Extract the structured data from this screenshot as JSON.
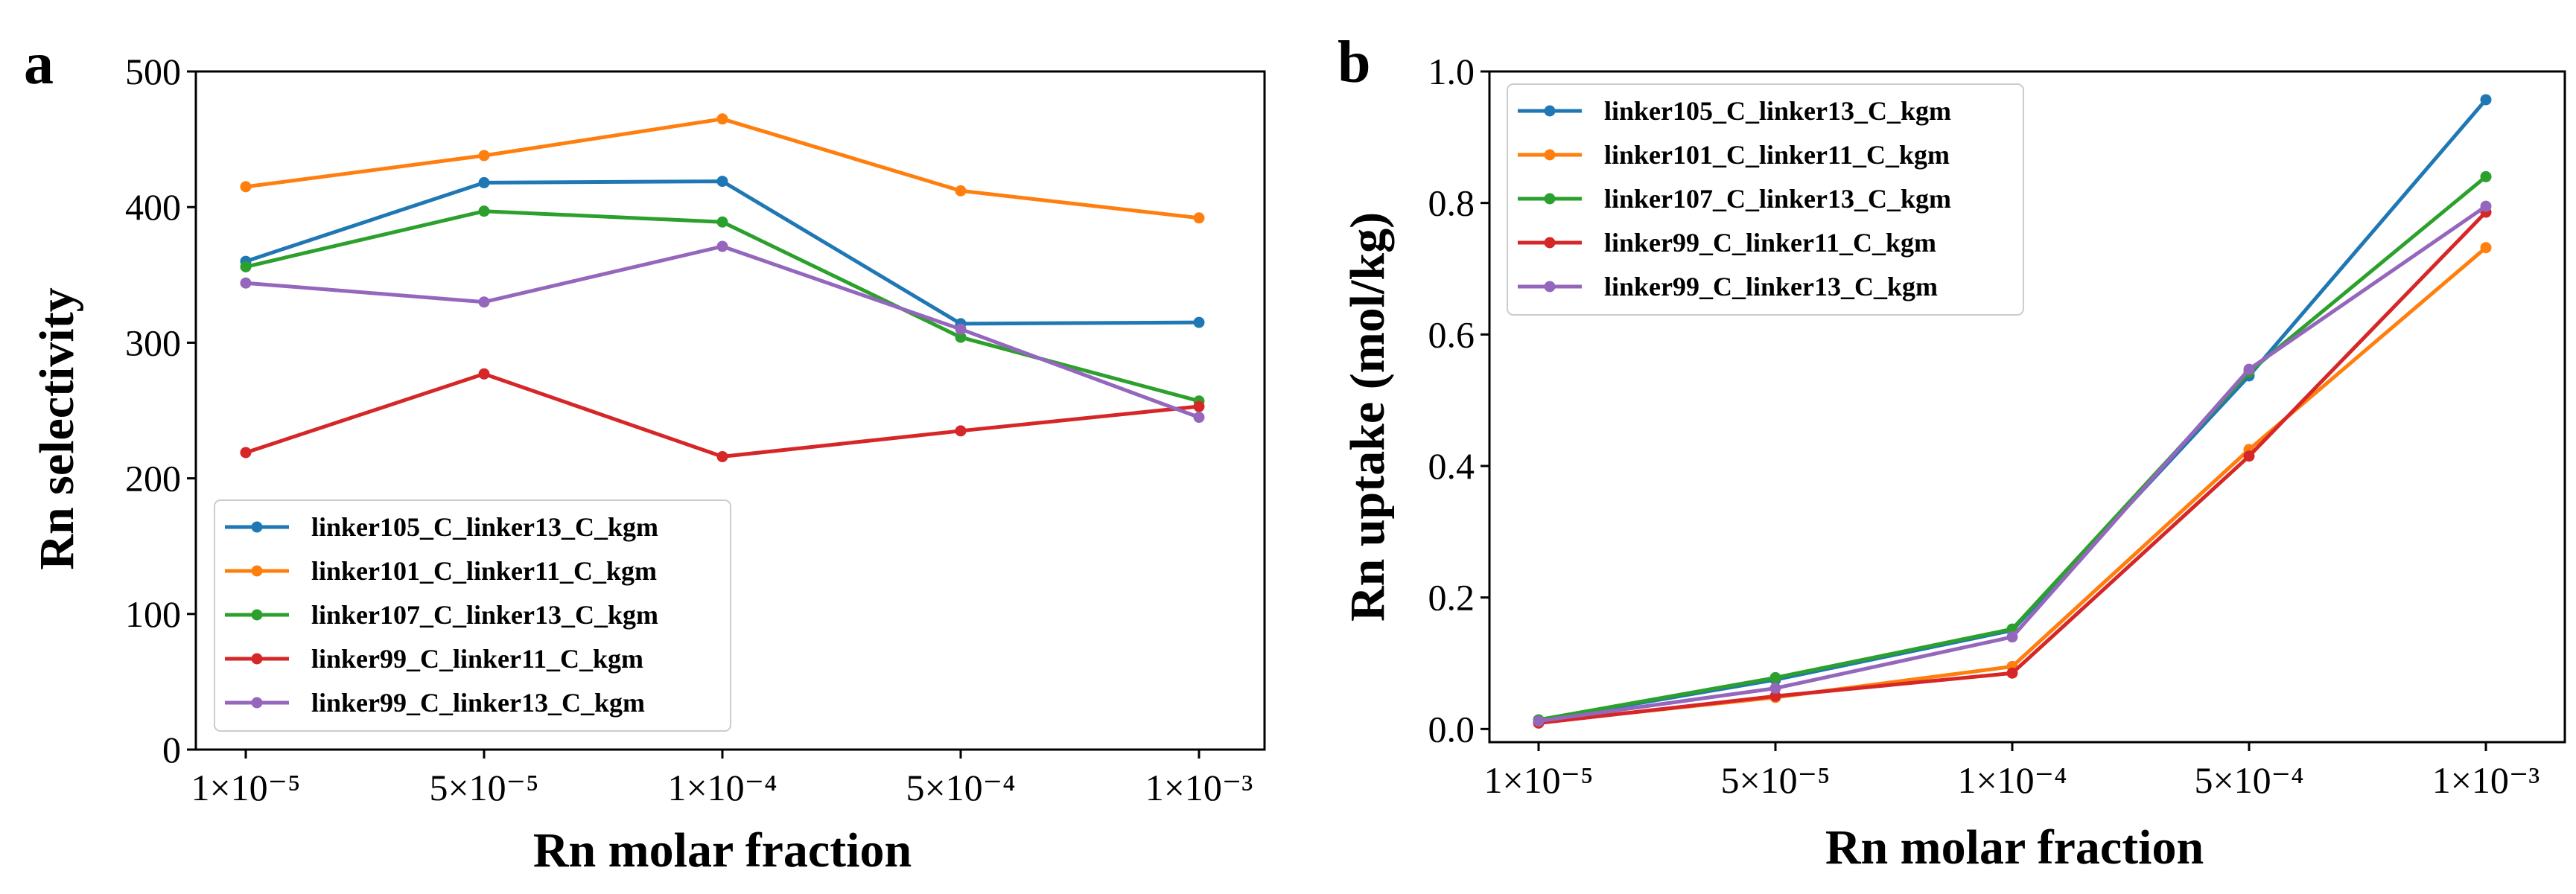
{
  "chart_data": [
    {
      "type": "line",
      "panel_label": "a",
      "xlabel": "Rn molar fraction",
      "ylabel": "Rn selectivity",
      "categories": [
        "1×10⁻⁵",
        "5×10⁻⁵",
        "1×10⁻⁴",
        "5×10⁻⁴",
        "1×10⁻³"
      ],
      "ylim": [
        0,
        500
      ],
      "yticks": [
        0,
        100,
        200,
        300,
        400,
        500
      ],
      "ytick_labels": [
        "0",
        "100",
        "200",
        "300",
        "400",
        "500"
      ],
      "grid": false,
      "legend_position": "lower-left",
      "series": [
        {
          "name": "linker105_C_linker13_C_kgm",
          "color": "#1f77b4",
          "values": [
            360,
            418,
            419,
            314,
            315
          ]
        },
        {
          "name": "linker101_C_linker11_C_kgm",
          "color": "#ff7f0e",
          "values": [
            415,
            438,
            465,
            412,
            392
          ]
        },
        {
          "name": "linker107_C_linker13_C_kgm",
          "color": "#2ca02c",
          "values": [
            356,
            397,
            389,
            304,
            257
          ]
        },
        {
          "name": "linker99_C_linker11_C_kgm",
          "color": "#d62728",
          "values": [
            219,
            277,
            216,
            235,
            253
          ]
        },
        {
          "name": "linker99_C_linker13_C_kgm",
          "color": "#9467bd",
          "values": [
            344,
            330,
            371,
            310,
            245
          ]
        }
      ]
    },
    {
      "type": "line",
      "panel_label": "b",
      "xlabel": "Rn molar fraction",
      "ylabel": "Rn uptake (mol/kg)",
      "categories": [
        "1×10⁻⁵",
        "5×10⁻⁵",
        "1×10⁻⁴",
        "5×10⁻⁴",
        "1×10⁻³"
      ],
      "ylim": [
        -0.02,
        1.0
      ],
      "yticks": [
        0.0,
        0.2,
        0.4,
        0.6,
        0.8,
        1.0
      ],
      "ytick_labels": [
        "0.0",
        "0.2",
        "0.4",
        "0.6",
        "0.8",
        "1.0"
      ],
      "grid": false,
      "legend_position": "upper-left",
      "series": [
        {
          "name": "linker105_C_linker13_C_kgm",
          "color": "#1f77b4",
          "values": [
            0.013,
            0.075,
            0.15,
            0.537,
            0.957
          ]
        },
        {
          "name": "linker101_C_linker11_C_kgm",
          "color": "#ff7f0e",
          "values": [
            0.01,
            0.048,
            0.095,
            0.425,
            0.732
          ]
        },
        {
          "name": "linker107_C_linker13_C_kgm",
          "color": "#2ca02c",
          "values": [
            0.014,
            0.078,
            0.152,
            0.543,
            0.84
          ]
        },
        {
          "name": "linker99_C_linker11_C_kgm",
          "color": "#d62728",
          "values": [
            0.009,
            0.05,
            0.085,
            0.415,
            0.786
          ]
        },
        {
          "name": "linker99_C_linker13_C_kgm",
          "color": "#9467bd",
          "values": [
            0.012,
            0.062,
            0.14,
            0.547,
            0.795
          ]
        }
      ]
    }
  ]
}
